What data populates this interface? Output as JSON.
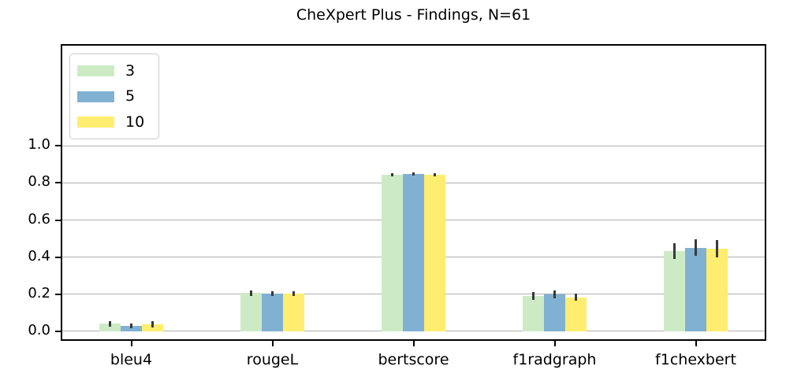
{
  "chart_data": {
    "type": "bar",
    "title": "CheXpert Plus - Findings, N=61",
    "categories": [
      "bleu4",
      "rougeL",
      "bertscore",
      "f1radgraph",
      "f1chexbert"
    ],
    "series": [
      {
        "name": "3",
        "color": "#ccebc5",
        "values": [
          0.04,
          0.205,
          0.845,
          0.19,
          0.432
        ],
        "errors": [
          0.015,
          0.013,
          0.008,
          0.022,
          0.043
        ]
      },
      {
        "name": "5",
        "color": "#80b1d3",
        "values": [
          0.029,
          0.203,
          0.85,
          0.198,
          0.45
        ],
        "errors": [
          0.013,
          0.012,
          0.008,
          0.021,
          0.045
        ]
      },
      {
        "name": "10",
        "color": "#ffed6f",
        "values": [
          0.036,
          0.204,
          0.846,
          0.182,
          0.445
        ],
        "errors": [
          0.016,
          0.013,
          0.008,
          0.019,
          0.046
        ]
      }
    ],
    "xlabel": "",
    "ylabel": "",
    "ytick_labels": [
      "0.0",
      "0.2",
      "0.4",
      "0.6",
      "0.8",
      "1.0"
    ],
    "yticks": [
      0.0,
      0.2,
      0.4,
      0.6,
      0.8,
      1.0
    ],
    "ylim": [
      -0.05,
      1.55
    ],
    "grid": true,
    "legend_position": "upper left",
    "colors": {
      "gridline": "#b0b0b0",
      "spine": "#000000",
      "errorbar": "#3a3a3a",
      "background": "#ffffff"
    }
  }
}
